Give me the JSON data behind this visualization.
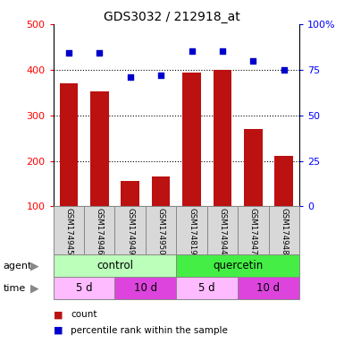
{
  "title": "GDS3032 / 212918_at",
  "samples": [
    "GSM174945",
    "GSM174946",
    "GSM174949",
    "GSM174950",
    "GSM174819",
    "GSM174944",
    "GSM174947",
    "GSM174948"
  ],
  "counts": [
    370,
    352,
    155,
    165,
    393,
    400,
    270,
    210
  ],
  "percentile_ranks": [
    84,
    84,
    71,
    72,
    85,
    85,
    80,
    75
  ],
  "ylim_left": [
    100,
    500
  ],
  "ylim_right": [
    0,
    100
  ],
  "yticks_left": [
    100,
    200,
    300,
    400,
    500
  ],
  "yticks_right": [
    0,
    25,
    50,
    75,
    100
  ],
  "ytick_labels_right": [
    "0",
    "25",
    "50",
    "75",
    "100%"
  ],
  "agent_labels": [
    {
      "text": "control",
      "start": 0,
      "end": 4,
      "color": "#bbffbb"
    },
    {
      "text": "quercetin",
      "start": 4,
      "end": 8,
      "color": "#44ee44"
    }
  ],
  "time_labels": [
    {
      "text": "5 d",
      "start": 0,
      "end": 2,
      "color": "#ffbbff"
    },
    {
      "text": "10 d",
      "start": 2,
      "end": 4,
      "color": "#dd44dd"
    },
    {
      "text": "5 d",
      "start": 4,
      "end": 6,
      "color": "#ffbbff"
    },
    {
      "text": "10 d",
      "start": 6,
      "end": 8,
      "color": "#dd44dd"
    }
  ],
  "bar_color": "#bb1111",
  "scatter_color": "#0000cc",
  "bar_width": 0.6,
  "bg_color": "#ffffff",
  "sample_bg_color": "#d8d8d8",
  "legend_count_color": "#bb1111",
  "legend_pct_color": "#0000cc"
}
